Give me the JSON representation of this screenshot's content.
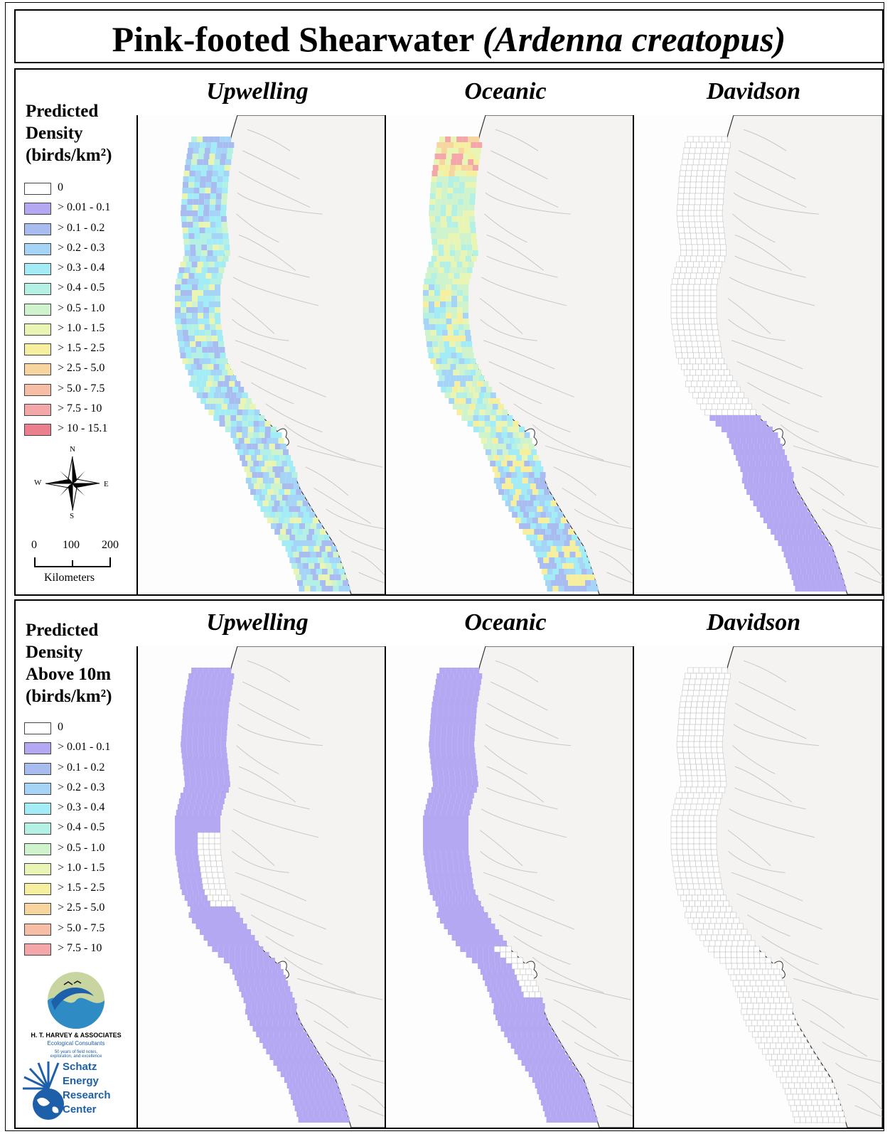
{
  "title": {
    "main": "Pink-footed Shearwater ",
    "italic": "(Ardenna creatopus)"
  },
  "panels": [
    {
      "legend_title": [
        "Predicted",
        "Density",
        "(birds/km²)"
      ],
      "columns": [
        "Upwelling",
        "Oceanic",
        "Davidson"
      ],
      "classes": [
        {
          "label": "0",
          "color": "#ffffff"
        },
        {
          "label": "> 0.01 - 0.1",
          "color": "#b4a8f2"
        },
        {
          "label": "> 0.1 - 0.2",
          "color": "#a8bcf0"
        },
        {
          "label": "> 0.2 - 0.3",
          "color": "#a6d4f7"
        },
        {
          "label": "> 0.3 - 0.4",
          "color": "#a4ecf5"
        },
        {
          "label": "> 0.4 - 0.5",
          "color": "#b4f1e4"
        },
        {
          "label": "> 0.5 - 1.0",
          "color": "#cff4cd"
        },
        {
          "label": "> 1.0 - 1.5",
          "color": "#e9f5b4"
        },
        {
          "label": "> 1.5 - 2.5",
          "color": "#f6efa0"
        },
        {
          "label": "> 2.5 - 5.0",
          "color": "#f6d59f"
        },
        {
          "label": "> 5.0 - 7.5",
          "color": "#f6bea4"
        },
        {
          "label": "> 7.5 - 10",
          "color": "#f4a7a8"
        },
        {
          "label": "> 10 - 15.1",
          "color": "#ec7f8d"
        }
      ]
    },
    {
      "legend_title": [
        "Predicted",
        "Density",
        "Above 10m",
        "(birds/km²)"
      ],
      "columns": [
        "Upwelling",
        "Oceanic",
        "Davidson"
      ],
      "classes": [
        {
          "label": "0",
          "color": "#ffffff"
        },
        {
          "label": "> 0.01 - 0.1",
          "color": "#b4a8f2"
        },
        {
          "label": "> 0.1 - 0.2",
          "color": "#a8bcf0"
        },
        {
          "label": "> 0.2 - 0.3",
          "color": "#a6d4f7"
        },
        {
          "label": "> 0.3 - 0.4",
          "color": "#a4ecf5"
        },
        {
          "label": "> 0.4 - 0.5",
          "color": "#b4f1e4"
        },
        {
          "label": "> 0.5 - 1.0",
          "color": "#cff4cd"
        },
        {
          "label": "> 1.0 - 1.5",
          "color": "#e9f5b4"
        },
        {
          "label": "> 1.5 - 2.5",
          "color": "#f6efa0"
        },
        {
          "label": "> 2.5 - 5.0",
          "color": "#f6d59f"
        },
        {
          "label": "> 5.0 - 7.5",
          "color": "#f6bea4"
        },
        {
          "label": "> 7.5 - 10",
          "color": "#f4a7a8"
        }
      ]
    }
  ],
  "compass": {
    "n": "N",
    "s": "S",
    "e": "E",
    "w": "W"
  },
  "scale_bar": {
    "ticks": [
      "0",
      "100",
      "200"
    ],
    "unit": "Kilometers"
  },
  "logos": {
    "harvey": {
      "name": "H. T. HARVEY & ASSOCIATES",
      "sub": "Ecological Consultants",
      "tagline": [
        "50 years of field notes,",
        "exploration, and excellence"
      ]
    },
    "schatz": {
      "lines": [
        "Schatz",
        "Energy",
        "Research",
        "Center"
      ]
    }
  },
  "map_fills": {
    "top": [
      "upwelling-mixed",
      "oceanic-mixed",
      "davidson-partial"
    ],
    "bottom": [
      "lowest-class",
      "lowest-class",
      "zero-grid"
    ]
  }
}
